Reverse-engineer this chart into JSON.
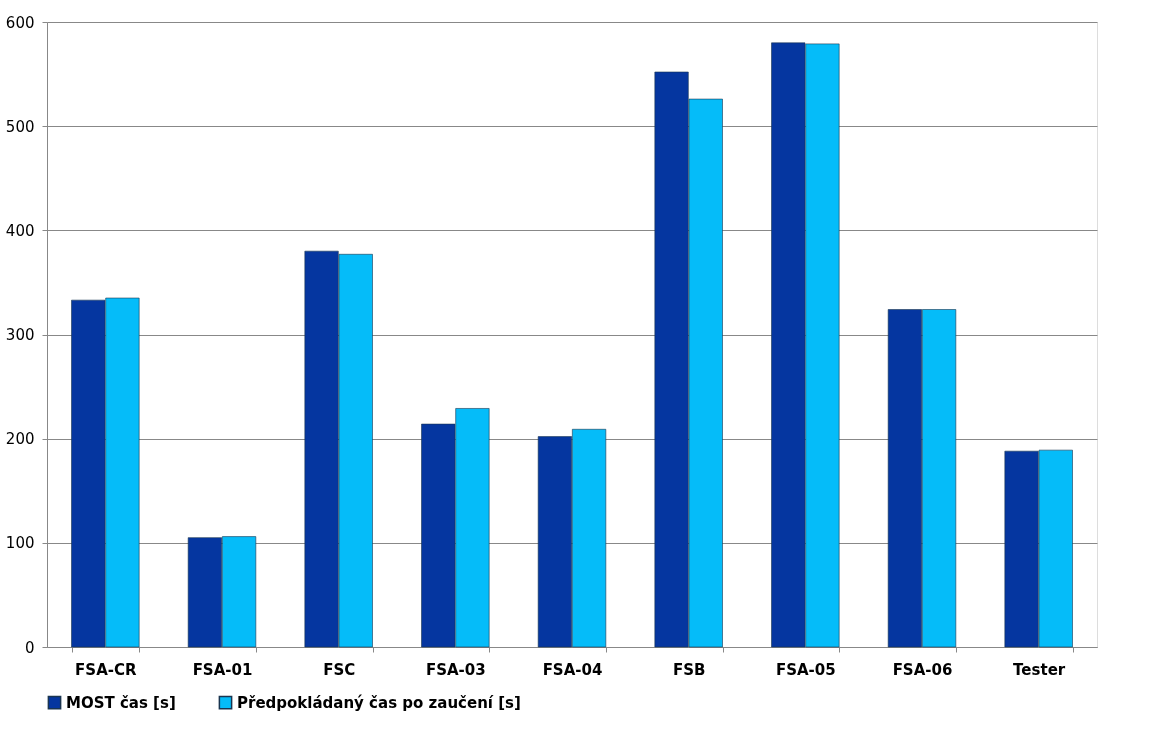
{
  "chart_data": {
    "type": "bar",
    "categories": [
      "FSA-CR",
      "FSA-01",
      "FSC",
      "FSA-03",
      "FSA-04",
      "FSB",
      "FSA-05",
      "FSA-06",
      "Tester"
    ],
    "series": [
      {
        "name": "MOST čas [s]",
        "color": "#0536a0",
        "values": [
          333,
          105,
          380,
          214,
          202,
          552,
          580,
          324,
          188
        ]
      },
      {
        "name": "Předpokládaný čas po zaučení [s]",
        "color": "#05bcf9",
        "values": [
          335,
          106,
          377,
          229,
          209,
          526,
          579,
          324,
          189
        ]
      }
    ],
    "ylim": [
      0,
      600
    ],
    "yticks": [
      0,
      100,
      200,
      300,
      400,
      500,
      600
    ],
    "grid": "y",
    "legend": "bottom"
  }
}
